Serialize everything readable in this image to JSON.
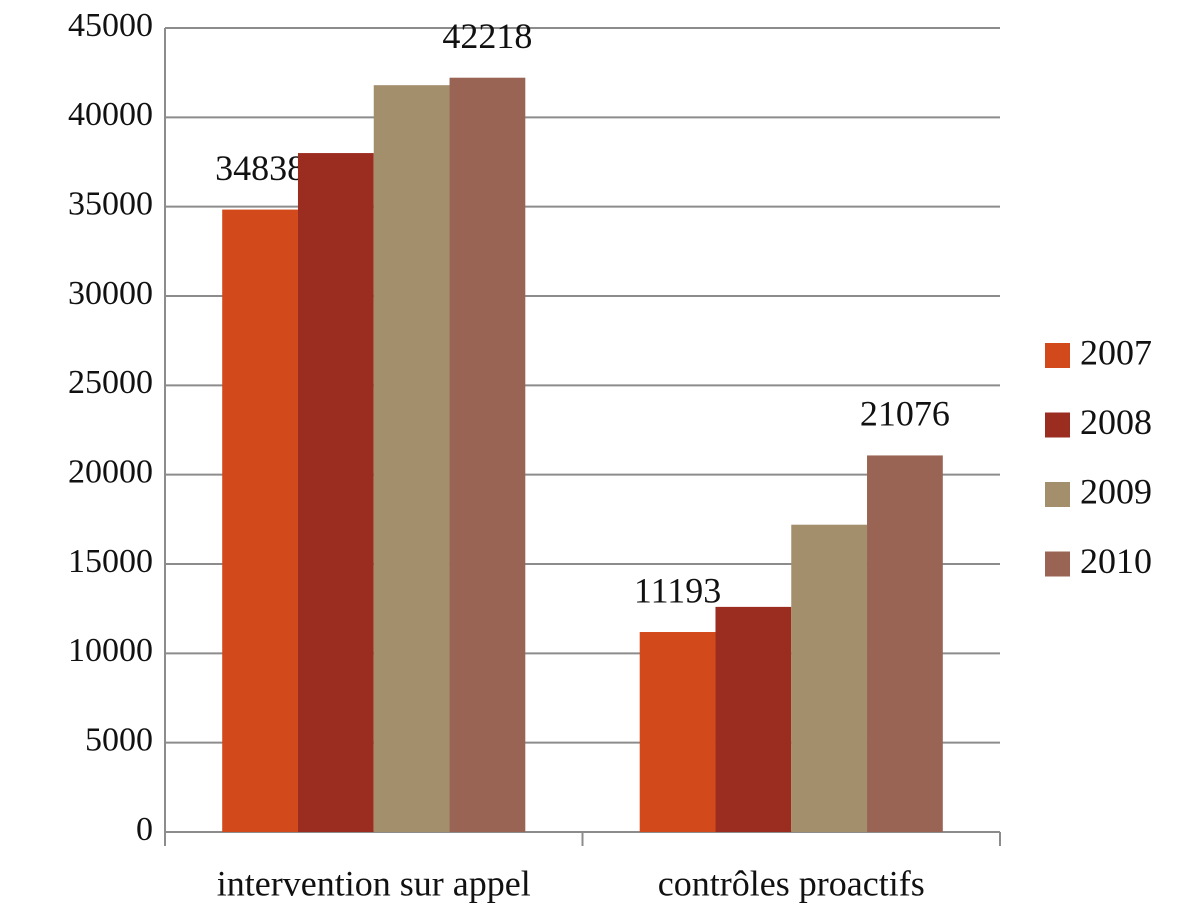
{
  "chart_data": {
    "type": "bar",
    "categories": [
      "intervention sur appel",
      "contrôles proactifs"
    ],
    "series": [
      {
        "name": "2007",
        "color": "#d24a1b",
        "values": [
          34838,
          11193
        ],
        "value_labels": [
          "34838",
          "11193"
        ]
      },
      {
        "name": "2008",
        "color": "#9b2d20",
        "values": [
          38000,
          12600
        ]
      },
      {
        "name": "2009",
        "color": "#a48f6d",
        "values": [
          41800,
          17200
        ]
      },
      {
        "name": "2010",
        "color": "#996453",
        "values": [
          42218,
          21076
        ],
        "value_labels": [
          "42218",
          "21076"
        ]
      }
    ],
    "ylim": [
      0,
      45000
    ],
    "yticks": [
      0,
      5000,
      10000,
      15000,
      20000,
      25000,
      30000,
      35000,
      40000,
      45000
    ],
    "grid": true,
    "legend": "right"
  }
}
